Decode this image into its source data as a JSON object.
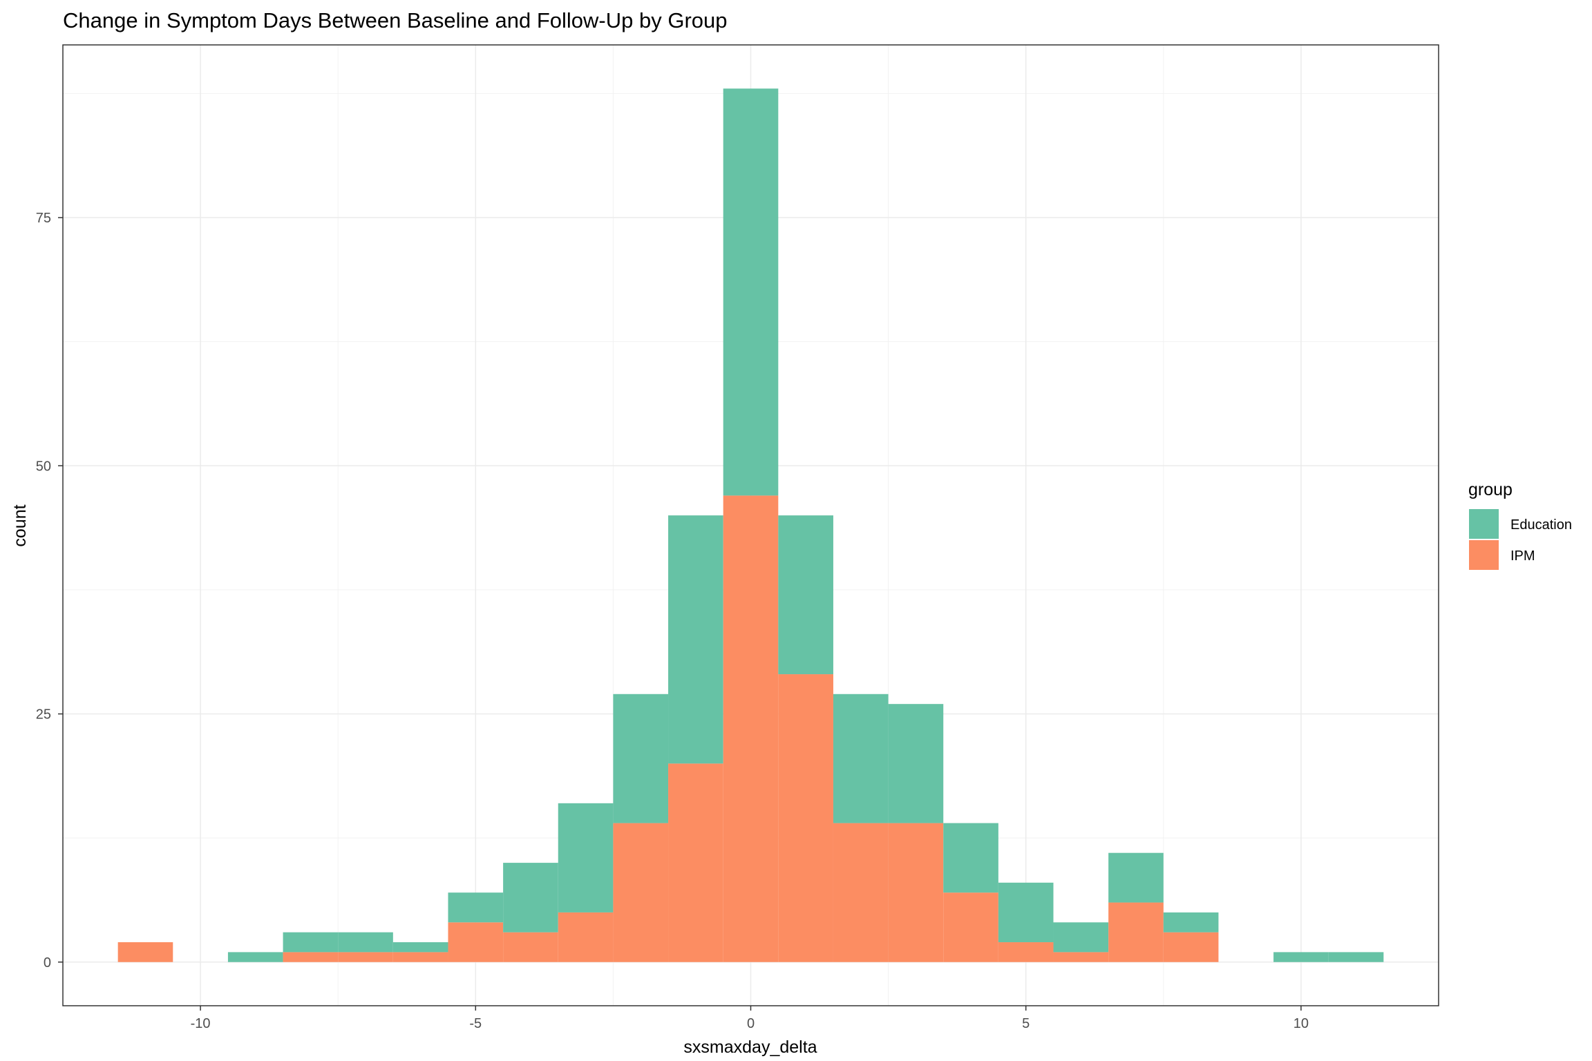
{
  "chart_data": {
    "type": "bar",
    "title": "Change in Symptom Days Between Baseline and Follow-Up by Group",
    "xlabel": "sxsmaxday_delta",
    "ylabel": "count",
    "xlim": [
      -12.5,
      12.5
    ],
    "ylim": [
      -4.4,
      92.4
    ],
    "x_ticks": [
      -10,
      -5,
      0,
      5,
      10
    ],
    "x_tick_labels": [
      "-10",
      "-5",
      "0",
      "5",
      "10"
    ],
    "y_ticks": [
      0,
      25,
      50,
      75
    ],
    "y_tick_labels": [
      "0",
      "25",
      "50",
      "75"
    ],
    "bin_width": 1,
    "stacked": true,
    "grid": true,
    "legend_position": "right",
    "legend_title": "group",
    "x": [
      -11,
      -10,
      -9,
      -8,
      -7,
      -6,
      -5,
      -4,
      -3,
      -2,
      -1,
      0,
      1,
      2,
      3,
      4,
      5,
      6,
      7,
      8,
      9,
      10,
      11
    ],
    "series": [
      {
        "name": "Education",
        "color": "#66C2A5",
        "values": [
          0,
          0,
          1,
          2,
          2,
          1,
          3,
          7,
          11,
          13,
          25,
          41,
          16,
          13,
          12,
          7,
          6,
          3,
          5,
          2,
          0,
          1,
          1
        ]
      },
      {
        "name": "IPM",
        "color": "#FC8D62",
        "values": [
          2,
          0,
          0,
          1,
          1,
          1,
          4,
          3,
          5,
          14,
          20,
          47,
          29,
          14,
          14,
          7,
          2,
          1,
          6,
          3,
          0,
          0,
          0
        ]
      }
    ]
  }
}
